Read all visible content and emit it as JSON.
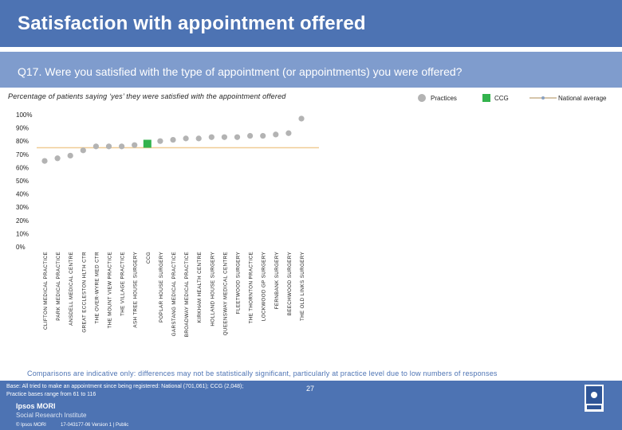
{
  "header": {
    "title": "Satisfaction with appointment offered",
    "question": "Q17. Were you satisfied with the type of appointment (or appointments) you were offered?"
  },
  "subtitle": "Percentage of patients saying ‘yes’ they were satisfied with the appointment offered",
  "legend": {
    "practices": "Practices",
    "ccg": "CCG",
    "national": "National average"
  },
  "colors": {
    "practice": "#b3b3b3",
    "ccg": "#33b34d",
    "national": "#f0cc96",
    "title_bg": "#4d73b3",
    "question_bg": "#7f9ccd"
  },
  "chart_data": {
    "type": "scatter",
    "y_ticks": [
      "0%",
      "10%",
      "20%",
      "30%",
      "40%",
      "50%",
      "60%",
      "70%",
      "80%",
      "90%",
      "100%"
    ],
    "ylim": [
      0,
      100
    ],
    "categories": [
      "CLIFTON MEDICAL PRACTICE",
      "PARK MEDICAL PRACTICE",
      "ANSDELL MEDICAL CENTRE",
      "GREAT ECCLESTON HLTH CTR",
      "THE OVER-WYRE MED CTR",
      "THE MOUNT VIEW PRACTICE",
      "THE VILLAGE PRACTICE",
      "ASH TREE HOUSE SURGERY",
      "CCG",
      "POPLAR HOUSE SURGERY",
      "GARSTANG MEDICAL PRACTICE",
      "BROADWAY MEDICAL PRACTICE",
      "KIRKHAM HEALTH CENTRE",
      "HOLLAND HOUSE SURGERY",
      "QUEENSWAY MEDICAL CENTRE",
      "FLEETWOOD SURGERY",
      "THE THORNTON PRACTICE",
      "LOCKWOOD GP SURGERY",
      "FERNBANK SURGERY",
      "BEECHWOOD SURGERY",
      "THE OLD LINKS SURGERY"
    ],
    "values": [
      65,
      67,
      69,
      73,
      76,
      76,
      76,
      77,
      78,
      80,
      81,
      82,
      82,
      83,
      83,
      83,
      84,
      84,
      85,
      86,
      97
    ],
    "ccg_index": 8,
    "national_average": 75,
    "grid": false
  },
  "footer": {
    "footnote": "Comparisons are indicative only: differences may not be statistically significant, particularly at practice level due to low numbers of responses",
    "base_line1": "Base: All tried to make an appointment since being registered: National (701,061); CCG (2,048);",
    "base_line2": "Practice bases range from 61 to 116",
    "org_name": "Ipsos MORI",
    "org_sub": "Social Research Institute",
    "copyright": "© Ipsos MORI",
    "job": "17-043177-06 Version 1 | Public",
    "page": "27"
  }
}
